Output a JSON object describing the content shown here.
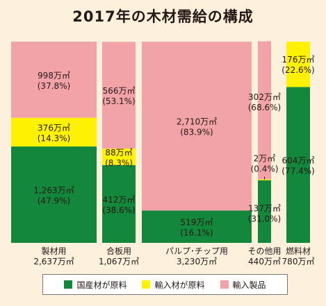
{
  "chart_data": {
    "type": "bar",
    "title": "2017年の木材需給の構成",
    "colors": {
      "domestic": "#13873b",
      "imported_material": "#fff200",
      "imported_product": "#f2a3a8"
    },
    "legend": [
      {
        "key": "domestic",
        "label": "国産材が原料"
      },
      {
        "key": "imported_material",
        "label": "輸入材が原料"
      },
      {
        "key": "imported_product",
        "label": "輸入製品"
      }
    ],
    "categories": [
      {
        "name": "製材用",
        "total_label": "2,637万㎥",
        "total": 2637,
        "segments": [
          {
            "key": "domestic",
            "value": 1263,
            "value_label": "1,263万㎥",
            "pct_label": "(47.9%)"
          },
          {
            "key": "imported_material",
            "value": 376,
            "value_label": "376万㎥",
            "pct_label": "(14.3%)"
          },
          {
            "key": "imported_product",
            "value": 998,
            "value_label": "998万㎥",
            "pct_label": "(37.8%)"
          }
        ]
      },
      {
        "name": "合板用",
        "total_label": "1,067万㎥",
        "total": 1067,
        "segments": [
          {
            "key": "domestic",
            "value": 412,
            "value_label": "412万㎥",
            "pct_label": "(38.6%)"
          },
          {
            "key": "imported_material",
            "value": 88,
            "value_label": "88万㎥",
            "pct_label": "(8.3%)"
          },
          {
            "key": "imported_product",
            "value": 566,
            "value_label": "566万㎥",
            "pct_label": "(53.1%)"
          }
        ]
      },
      {
        "name": "パルプ･チップ用",
        "total_label": "3,230万㎥",
        "total": 3230,
        "segments": [
          {
            "key": "domestic",
            "value": 519,
            "value_label": "519万㎥",
            "pct_label": "(16.1%)"
          },
          {
            "key": "imported_product",
            "value": 2710,
            "value_label": "2,710万㎥",
            "pct_label": "(83.9%)"
          }
        ]
      },
      {
        "name": "その他用",
        "total_label": "440万㎥",
        "total": 440,
        "segments": [
          {
            "key": "domestic",
            "value": 137,
            "value_label": "137万㎥",
            "pct_label": "(31.0%)"
          },
          {
            "key": "imported_material",
            "value": 2,
            "value_label": "2万㎥",
            "pct_label": "(0.4%)"
          },
          {
            "key": "imported_product",
            "value": 302,
            "value_label": "302万㎥",
            "pct_label": "(68.6%)"
          }
        ]
      },
      {
        "name": "燃料材",
        "total_label": "780万㎥",
        "total": 780,
        "segments": [
          {
            "key": "domestic",
            "value": 604,
            "value_label": "604万㎥",
            "pct_label": "(77.4%)"
          },
          {
            "key": "imported_material",
            "value": 176,
            "value_label": "176万㎥",
            "pct_label": "(22.6%)"
          }
        ]
      }
    ]
  }
}
